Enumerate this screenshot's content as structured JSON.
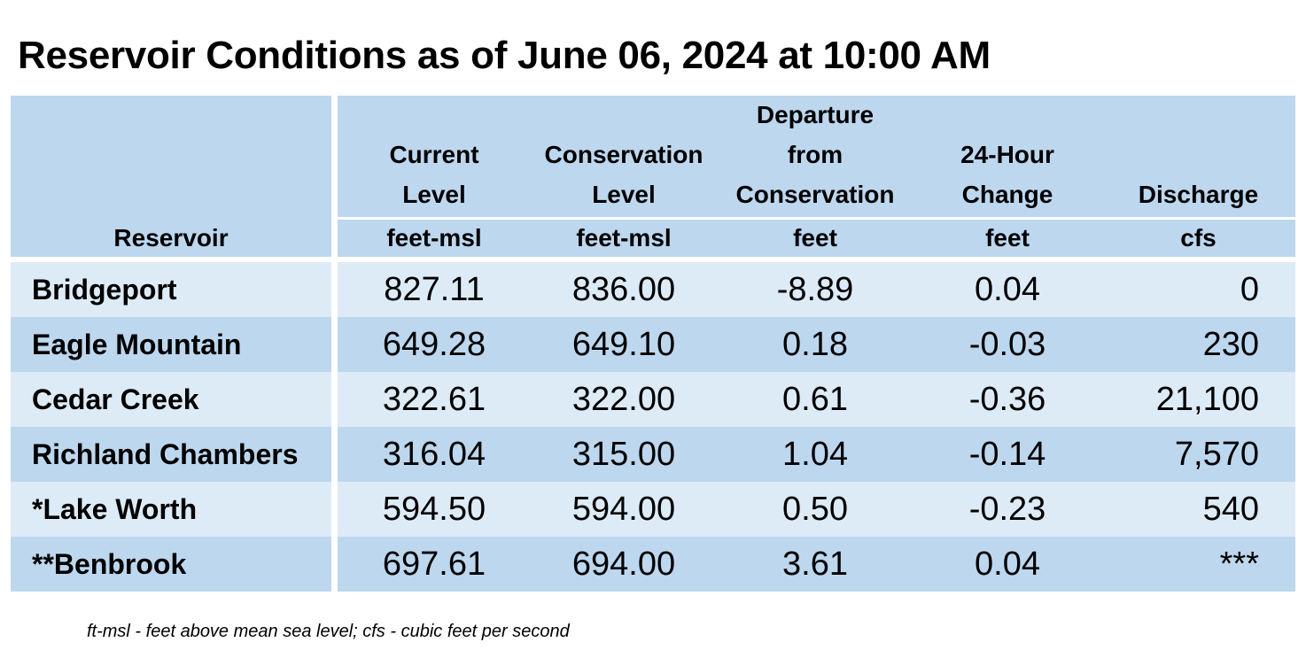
{
  "title": "Reservoir Conditions as of June 06, 2024 at 10:00 AM",
  "headers": {
    "reservoir": "Reservoir",
    "current_level": [
      "Current",
      "Level"
    ],
    "conservation_level": [
      "Conservation",
      "Level"
    ],
    "departure": [
      "Departure",
      "from",
      "Conservation"
    ],
    "change_24h": [
      "24-Hour",
      "Change"
    ],
    "discharge": [
      "Discharge"
    ]
  },
  "units": {
    "current_level": "feet-msl",
    "conservation_level": "feet-msl",
    "departure": "feet",
    "change_24h": "feet",
    "discharge": "cfs"
  },
  "rows": [
    {
      "name": "Bridgeport",
      "current": "827.11",
      "conservation": "836.00",
      "departure": "-8.89",
      "change": "0.04",
      "discharge": "0"
    },
    {
      "name": "Eagle Mountain",
      "current": "649.28",
      "conservation": "649.10",
      "departure": "0.18",
      "change": "-0.03",
      "discharge": "230"
    },
    {
      "name": "Cedar Creek",
      "current": "322.61",
      "conservation": "322.00",
      "departure": "0.61",
      "change": "-0.36",
      "discharge": "21,100"
    },
    {
      "name": "Richland Chambers",
      "current": "316.04",
      "conservation": "315.00",
      "departure": "1.04",
      "change": "-0.14",
      "discharge": "7,570"
    },
    {
      "name": "*Lake Worth",
      "current": "594.50",
      "conservation": "594.00",
      "departure": "0.50",
      "change": "-0.23",
      "discharge": "540"
    },
    {
      "name": "**Benbrook",
      "current": "697.61",
      "conservation": "694.00",
      "departure": "3.61",
      "change": "0.04",
      "discharge": "***"
    }
  ],
  "footnote": "ft-msl - feet above mean sea level; cfs - cubic feet per second",
  "colors": {
    "header_bg": "#bdd7ee",
    "row_light": "#ddebf7",
    "row_dark": "#bdd7ee"
  }
}
